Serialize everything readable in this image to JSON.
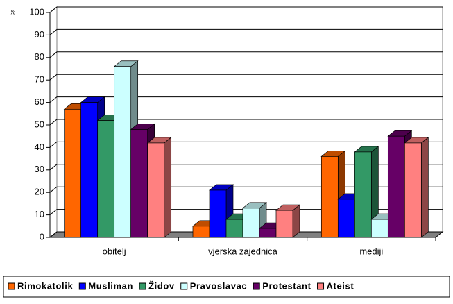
{
  "chart_data": {
    "type": "bar3d",
    "y_label": "%",
    "categories": [
      "obitelj",
      "vjerska zajednica",
      "mediji"
    ],
    "series": [
      {
        "name": "Rimokatolik",
        "color": "#ff6600",
        "values": [
          57,
          5,
          36
        ]
      },
      {
        "name": "Musliman",
        "color": "#0000ff",
        "values": [
          60,
          21,
          17
        ]
      },
      {
        "name": "Židov",
        "color": "#339966",
        "values": [
          52,
          8,
          38
        ]
      },
      {
        "name": "Pravoslavac",
        "color": "#ccffff",
        "values": [
          76,
          13,
          8
        ]
      },
      {
        "name": "Protestant",
        "color": "#660066",
        "values": [
          48,
          4,
          45
        ]
      },
      {
        "name": "Ateist",
        "color": "#ff8080",
        "values": [
          42,
          12,
          42
        ]
      }
    ],
    "ylim": [
      0,
      100
    ],
    "yticks": [
      0,
      10,
      20,
      30,
      40,
      50,
      60,
      70,
      80,
      90,
      100
    ],
    "grid": true
  }
}
